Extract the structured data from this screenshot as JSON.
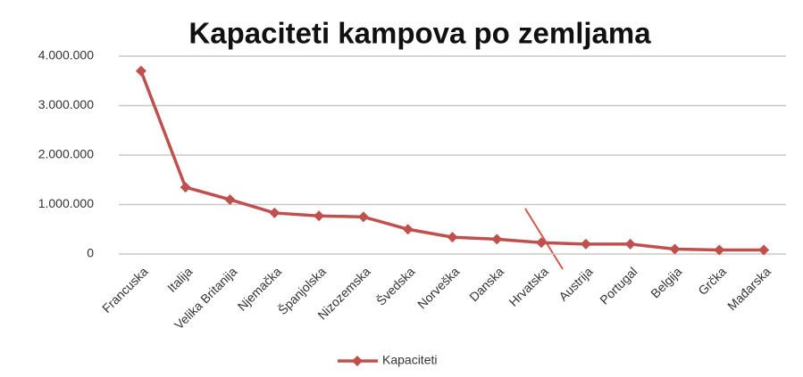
{
  "chart_data": {
    "type": "line",
    "title": "Kapaciteti kampova po zemljama",
    "categories": [
      "Francuska",
      "Italija",
      "Velika Britanija",
      "Njemačka",
      "Španjolska",
      "Nizozemska",
      "Švedska",
      "Norveška",
      "Danska",
      "Hrvatska",
      "Austrija",
      "Portugal",
      "Belgija",
      "Grčka",
      "Mađarska"
    ],
    "series": [
      {
        "name": "Kapaciteti",
        "color": "#c0504d",
        "values": [
          3700000,
          1350000,
          1100000,
          830000,
          770000,
          750000,
          500000,
          340000,
          300000,
          230000,
          200000,
          200000,
          100000,
          80000,
          80000
        ]
      }
    ],
    "ylim": [
      0,
      4000000
    ],
    "yticks": [
      0,
      {
        "value": 1000000,
        "label": "1.000.000"
      },
      {
        "value": 2000000,
        "label": "2.000.000"
      },
      {
        "value": 3000000,
        "label": "3.000.000"
      },
      {
        "value": 4000000,
        "label": "4.000.000"
      }
    ],
    "grid": true,
    "legend": "bottom"
  }
}
